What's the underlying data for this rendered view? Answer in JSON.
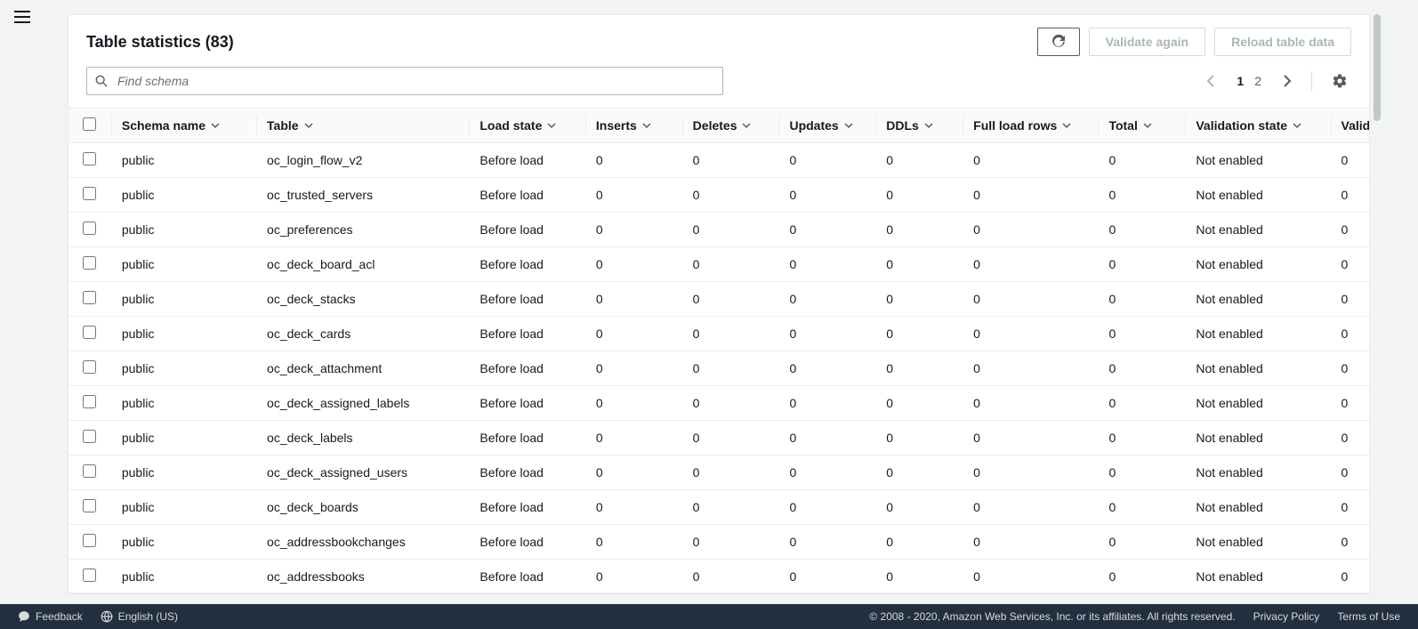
{
  "panel": {
    "title_prefix": "Table statistics",
    "count": 83,
    "refresh_label": "Refresh",
    "validate_label": "Validate again",
    "reload_label": "Reload table data"
  },
  "search": {
    "placeholder": "Find schema"
  },
  "pager": {
    "pages": [
      "1",
      "2"
    ],
    "current": "1"
  },
  "columns": [
    "Schema name",
    "Table",
    "Load state",
    "Inserts",
    "Deletes",
    "Updates",
    "DDLs",
    "Full load rows",
    "Total",
    "Validation state",
    "Validation p"
  ],
  "rows": [
    {
      "schema": "public",
      "table": "oc_login_flow_v2",
      "load_state": "Before load",
      "inserts": "0",
      "deletes": "0",
      "updates": "0",
      "ddls": "0",
      "full_load_rows": "0",
      "total": "0",
      "validation_state": "Not enabled",
      "validation_p": "0"
    },
    {
      "schema": "public",
      "table": "oc_trusted_servers",
      "load_state": "Before load",
      "inserts": "0",
      "deletes": "0",
      "updates": "0",
      "ddls": "0",
      "full_load_rows": "0",
      "total": "0",
      "validation_state": "Not enabled",
      "validation_p": "0"
    },
    {
      "schema": "public",
      "table": "oc_preferences",
      "load_state": "Before load",
      "inserts": "0",
      "deletes": "0",
      "updates": "0",
      "ddls": "0",
      "full_load_rows": "0",
      "total": "0",
      "validation_state": "Not enabled",
      "validation_p": "0"
    },
    {
      "schema": "public",
      "table": "oc_deck_board_acl",
      "load_state": "Before load",
      "inserts": "0",
      "deletes": "0",
      "updates": "0",
      "ddls": "0",
      "full_load_rows": "0",
      "total": "0",
      "validation_state": "Not enabled",
      "validation_p": "0"
    },
    {
      "schema": "public",
      "table": "oc_deck_stacks",
      "load_state": "Before load",
      "inserts": "0",
      "deletes": "0",
      "updates": "0",
      "ddls": "0",
      "full_load_rows": "0",
      "total": "0",
      "validation_state": "Not enabled",
      "validation_p": "0"
    },
    {
      "schema": "public",
      "table": "oc_deck_cards",
      "load_state": "Before load",
      "inserts": "0",
      "deletes": "0",
      "updates": "0",
      "ddls": "0",
      "full_load_rows": "0",
      "total": "0",
      "validation_state": "Not enabled",
      "validation_p": "0"
    },
    {
      "schema": "public",
      "table": "oc_deck_attachment",
      "load_state": "Before load",
      "inserts": "0",
      "deletes": "0",
      "updates": "0",
      "ddls": "0",
      "full_load_rows": "0",
      "total": "0",
      "validation_state": "Not enabled",
      "validation_p": "0"
    },
    {
      "schema": "public",
      "table": "oc_deck_assigned_labels",
      "load_state": "Before load",
      "inserts": "0",
      "deletes": "0",
      "updates": "0",
      "ddls": "0",
      "full_load_rows": "0",
      "total": "0",
      "validation_state": "Not enabled",
      "validation_p": "0"
    },
    {
      "schema": "public",
      "table": "oc_deck_labels",
      "load_state": "Before load",
      "inserts": "0",
      "deletes": "0",
      "updates": "0",
      "ddls": "0",
      "full_load_rows": "0",
      "total": "0",
      "validation_state": "Not enabled",
      "validation_p": "0"
    },
    {
      "schema": "public",
      "table": "oc_deck_assigned_users",
      "load_state": "Before load",
      "inserts": "0",
      "deletes": "0",
      "updates": "0",
      "ddls": "0",
      "full_load_rows": "0",
      "total": "0",
      "validation_state": "Not enabled",
      "validation_p": "0"
    },
    {
      "schema": "public",
      "table": "oc_deck_boards",
      "load_state": "Before load",
      "inserts": "0",
      "deletes": "0",
      "updates": "0",
      "ddls": "0",
      "full_load_rows": "0",
      "total": "0",
      "validation_state": "Not enabled",
      "validation_p": "0"
    },
    {
      "schema": "public",
      "table": "oc_addressbookchanges",
      "load_state": "Before load",
      "inserts": "0",
      "deletes": "0",
      "updates": "0",
      "ddls": "0",
      "full_load_rows": "0",
      "total": "0",
      "validation_state": "Not enabled",
      "validation_p": "0"
    },
    {
      "schema": "public",
      "table": "oc_addressbooks",
      "load_state": "Before load",
      "inserts": "0",
      "deletes": "0",
      "updates": "0",
      "ddls": "0",
      "full_load_rows": "0",
      "total": "0",
      "validation_state": "Not enabled",
      "validation_p": "0"
    }
  ],
  "footer": {
    "feedback": "Feedback",
    "language": "English (US)",
    "copyright": "© 2008 - 2020, Amazon Web Services, Inc. or its affiliates. All rights reserved.",
    "privacy": "Privacy Policy",
    "terms": "Terms of Use"
  },
  "colors": {
    "page_bg": "#f2f3f3",
    "panel_bg": "#ffffff",
    "border": "#eaeded",
    "text": "#16191f",
    "muted": "#545b64",
    "disabled": "#aab7b8",
    "footer_bg": "#232f3e",
    "footer_text": "#d5dbdb"
  }
}
